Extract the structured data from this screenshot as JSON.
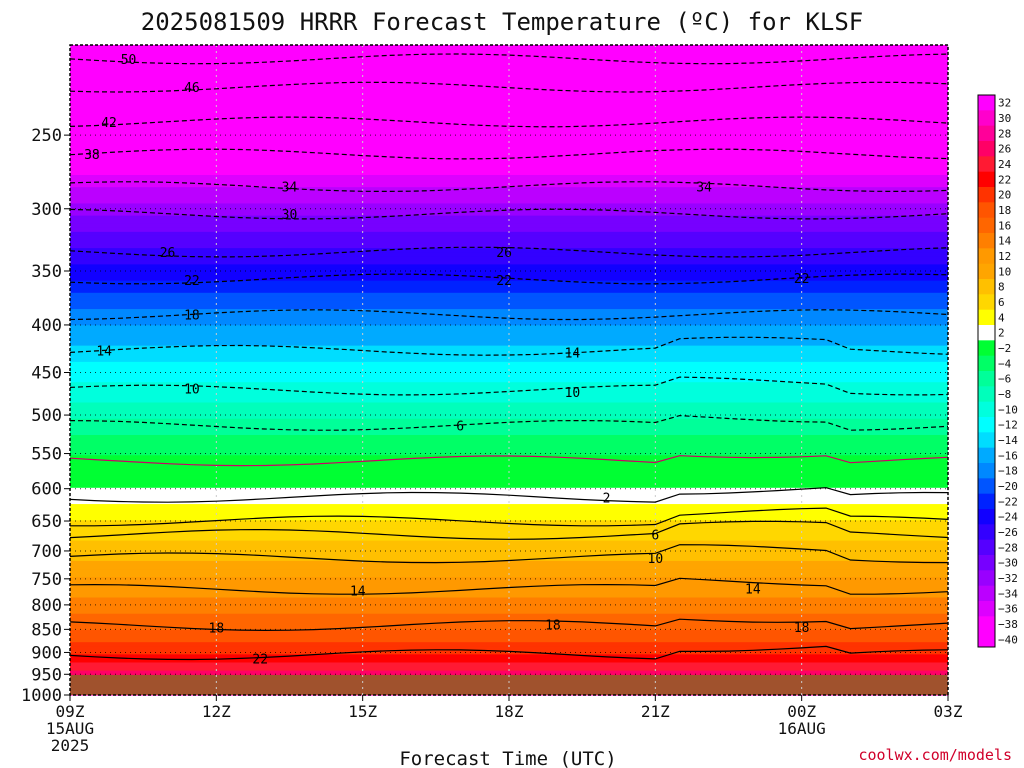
{
  "title": "2025081509 HRRR Forecast Temperature (ºC) for KLSF",
  "xlabel": "Forecast Time (UTC)",
  "credit": "coolwx.com/models",
  "x_ticks": [
    {
      "lines": [
        "09Z",
        "15AUG",
        "2025"
      ]
    },
    {
      "lines": [
        "12Z"
      ]
    },
    {
      "lines": [
        "15Z"
      ]
    },
    {
      "lines": [
        "18Z"
      ]
    },
    {
      "lines": [
        "21Z"
      ]
    },
    {
      "lines": [
        "00Z",
        "16AUG"
      ]
    },
    {
      "lines": [
        "03Z"
      ]
    }
  ],
  "chart_data": {
    "type": "heatmap",
    "title": "2025081509 HRRR Forecast Temperature (ºC) for KLSF",
    "xlabel": "Forecast Time (UTC)",
    "ylabel": "",
    "x_hours": [
      0,
      3,
      6,
      9,
      12,
      15,
      18
    ],
    "y_ticks": [
      250,
      300,
      350,
      400,
      450,
      500,
      550,
      600,
      650,
      700,
      750,
      800,
      850,
      900,
      950,
      1000
    ],
    "ylim": [
      1000,
      200
    ],
    "y_scale": "log",
    "grid": true,
    "colorbar_ticks": [
      32,
      30,
      28,
      26,
      24,
      22,
      20,
      18,
      16,
      14,
      12,
      10,
      8,
      6,
      4,
      2,
      -2,
      -4,
      -6,
      -8,
      -10,
      -12,
      -14,
      -16,
      -18,
      -20,
      -22,
      -24,
      -26,
      -28,
      -30,
      -32,
      -34,
      -36,
      -38,
      -40
    ],
    "colorbar_colors": [
      "#ff00ff",
      "#ff00cc",
      "#ff0099",
      "#ff0066",
      "#ff1a33",
      "#ff0000",
      "#ff3300",
      "#ff5500",
      "#ff6600",
      "#ff7f00",
      "#ff9900",
      "#ffa500",
      "#ffc000",
      "#ffd700",
      "#ffff00",
      "#ffffff",
      "#00ff33",
      "#00ff66",
      "#00ff99",
      "#00ffbb",
      "#00ffdd",
      "#00ffff",
      "#00ddff",
      "#00aaff",
      "#0088ff",
      "#0055ff",
      "#0022ff",
      "#1100ff",
      "#3300ff",
      "#5500ff",
      "#7700ff",
      "#9900ff",
      "#bb00ff",
      "#dd00ff",
      "#ff00ff",
      "#ff00ff"
    ],
    "profile": [
      {
        "p": 200,
        "t": -53
      },
      {
        "p": 250,
        "t": -42
      },
      {
        "p": 300,
        "t": -31
      },
      {
        "p": 350,
        "t": -23
      },
      {
        "p": 400,
        "t": -16
      },
      {
        "p": 450,
        "t": -11
      },
      {
        "p": 500,
        "t": -6.5
      },
      {
        "p": 550,
        "t": -2
      },
      {
        "p": 600,
        "t": 2
      },
      {
        "p": 650,
        "t": 6
      },
      {
        "p": 700,
        "t": 9
      },
      {
        "p": 750,
        "t": 12
      },
      {
        "p": 800,
        "t": 15
      },
      {
        "p": 850,
        "t": 18
      },
      {
        "p": 900,
        "t": 22
      },
      {
        "p": 950,
        "t": 27
      },
      {
        "p": 1000,
        "t": 32
      }
    ],
    "contour_labels": [
      {
        "value": "50",
        "x_hour": 1.2,
        "p": 207
      },
      {
        "value": "46",
        "x_hour": 2.5,
        "p": 222
      },
      {
        "value": "42",
        "x_hour": 0.8,
        "p": 242
      },
      {
        "value": "38",
        "x_hour": 0.45,
        "p": 262
      },
      {
        "value": "34",
        "x_hour": 4.5,
        "p": 284
      },
      {
        "value": "34",
        "x_hour": 13.0,
        "p": 284
      },
      {
        "value": "30",
        "x_hour": 4.5,
        "p": 304
      },
      {
        "value": "26",
        "x_hour": 2.0,
        "p": 334
      },
      {
        "value": "26",
        "x_hour": 8.9,
        "p": 334
      },
      {
        "value": "22",
        "x_hour": 2.5,
        "p": 358
      },
      {
        "value": "22",
        "x_hour": 8.9,
        "p": 358
      },
      {
        "value": "22",
        "x_hour": 15.0,
        "p": 356
      },
      {
        "value": "18",
        "x_hour": 2.5,
        "p": 390
      },
      {
        "value": "14",
        "x_hour": 0.7,
        "p": 426
      },
      {
        "value": "14",
        "x_hour": 10.3,
        "p": 428
      },
      {
        "value": "10",
        "x_hour": 2.5,
        "p": 468
      },
      {
        "value": "10",
        "x_hour": 10.3,
        "p": 472
      },
      {
        "value": "6",
        "x_hour": 8.0,
        "p": 513
      },
      {
        "value": "2",
        "x_hour": 11.0,
        "p": 613
      },
      {
        "value": "6",
        "x_hour": 12.0,
        "p": 672
      },
      {
        "value": "10",
        "x_hour": 12.0,
        "p": 712
      },
      {
        "value": "14",
        "x_hour": 5.9,
        "p": 772
      },
      {
        "value": "14",
        "x_hour": 14.0,
        "p": 768
      },
      {
        "value": "18",
        "x_hour": 3.0,
        "p": 846
      },
      {
        "value": "18",
        "x_hour": 9.9,
        "p": 840
      },
      {
        "value": "18",
        "x_hour": 15.0,
        "p": 845
      },
      {
        "value": "22",
        "x_hour": 3.9,
        "p": 914
      }
    ]
  }
}
